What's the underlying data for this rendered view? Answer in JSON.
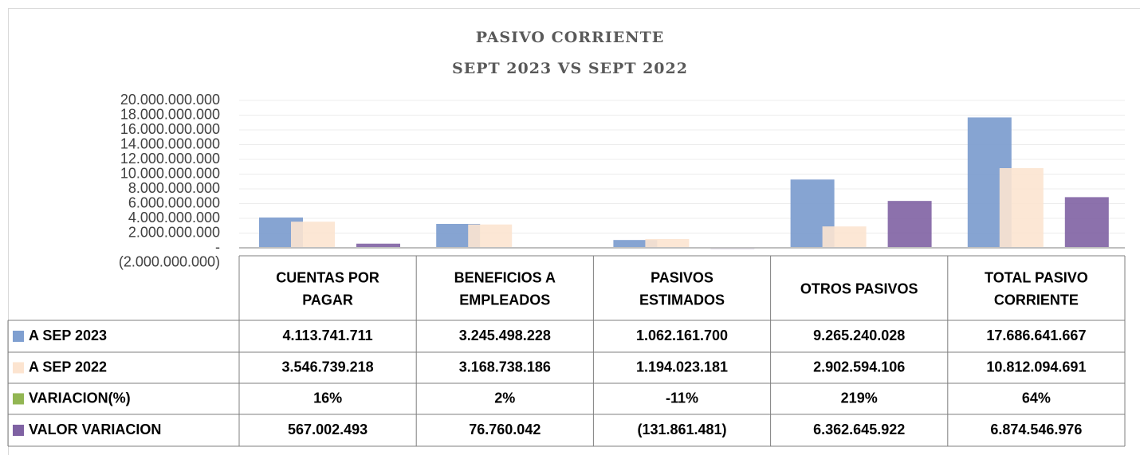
{
  "chart_data": {
    "type": "bar",
    "title": "PASIVO CORRIENTE",
    "subtitle": "SEPT 2023 VS SEPT 2022",
    "categories": [
      [
        "CUENTAS POR",
        "PAGAR"
      ],
      [
        "BENEFICIOS A",
        "EMPLEADOS"
      ],
      [
        "PASIVOS",
        "ESTIMADOS"
      ],
      [
        "OTROS PASIVOS"
      ],
      [
        "TOTAL PASIVO",
        "CORRIENTE"
      ]
    ],
    "series": [
      {
        "name": "A SEP 2023",
        "color": "#7f9fd0",
        "values": [
          4113741711,
          3245498228,
          1062161700,
          9265240028,
          17686641667
        ],
        "value_labels": [
          "4.113.741.711",
          "3.245.498.228",
          "1.062.161.700",
          "9.265.240.028",
          "17.686.641.667"
        ]
      },
      {
        "name": "A SEP 2022",
        "color": "#fce4d0",
        "values": [
          3546739218,
          3168738186,
          1194023181,
          2902594106,
          10812094691
        ],
        "value_labels": [
          "3.546.739.218",
          "3.168.738.186",
          "1.194.023.181",
          "2.902.594.106",
          "10.812.094.691"
        ]
      },
      {
        "name": "VARIACION(%)",
        "color": "#92b653",
        "values": [
          16,
          2,
          -11,
          219,
          64
        ],
        "value_labels": [
          "16%",
          "2%",
          "-11%",
          "219%",
          "64%"
        ]
      },
      {
        "name": "VALOR VARIACION",
        "color": "#7f62a3",
        "values": [
          567002493,
          76760042,
          -131861481,
          6362645922,
          6874546976
        ],
        "value_labels": [
          "567.002.493",
          "76.760.042",
          "(131.861.481)",
          "6.362.645.922",
          "6.874.546.976"
        ]
      }
    ],
    "ylim": [
      -2000000000,
      20000000000
    ],
    "yticks": [
      {
        "value": -2000000000,
        "label": "(2.000.000.000)"
      },
      {
        "value": 0,
        "label": "-"
      },
      {
        "value": 2000000000,
        "label": "2.000.000.000"
      },
      {
        "value": 4000000000,
        "label": "4.000.000.000"
      },
      {
        "value": 6000000000,
        "label": "6.000.000.000"
      },
      {
        "value": 8000000000,
        "label": "8.000.000.000"
      },
      {
        "value": 10000000000,
        "label": "10.000.000.000"
      },
      {
        "value": 12000000000,
        "label": "12.000.000.000"
      },
      {
        "value": 14000000000,
        "label": "14.000.000.000"
      },
      {
        "value": 16000000000,
        "label": "16.000.000.000"
      },
      {
        "value": 18000000000,
        "label": "18.000.000.000"
      },
      {
        "value": 20000000000,
        "label": "20.000.000.000"
      }
    ],
    "grid": true
  }
}
